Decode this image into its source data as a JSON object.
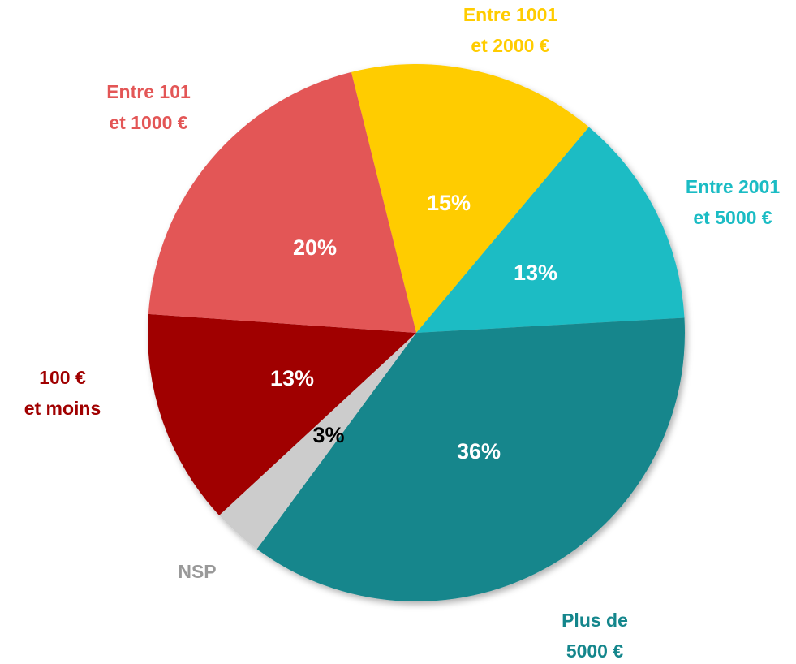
{
  "chart_data": {
    "type": "pie",
    "categories": [
      "Entre 1001\net 2000 €",
      "Entre 2001\net 5000 €",
      "Plus de\n5000 €",
      "NSP",
      "100 €\net moins",
      "Entre 101\net 1000 €"
    ],
    "values": [
      15,
      13,
      36,
      3,
      13,
      20
    ],
    "value_labels": [
      "15%",
      "13%",
      "36%",
      "3%",
      "13%",
      "20%"
    ],
    "colors": [
      "#FFCC00",
      "#1BBCC4",
      "#14868C",
      "#CCCCCC",
      "#A00000",
      "#E35656"
    ],
    "label_colors": [
      "#FFCC00",
      "#1BBCC4",
      "#14868C",
      "#999999",
      "#A00000",
      "#E35656"
    ],
    "value_label_colors": [
      "#FFFFFF",
      "#FFFFFF",
      "#FFFFFF",
      "#000000",
      "#FFFFFF",
      "#FFFFFF"
    ]
  }
}
